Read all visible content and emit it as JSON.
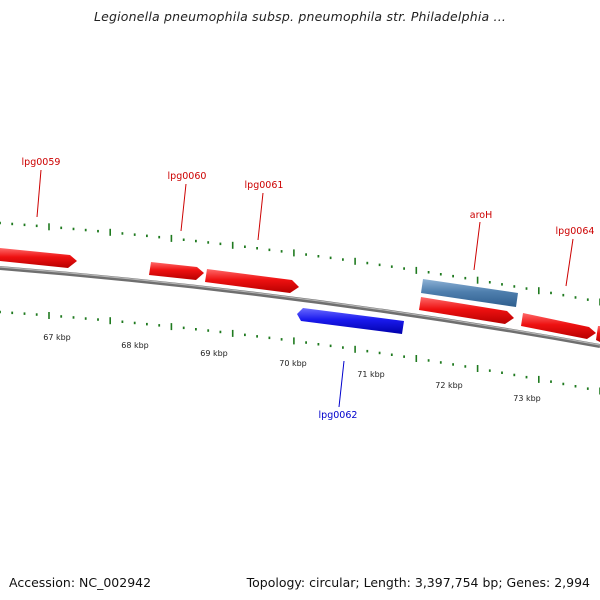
{
  "title": "Legionella pneumophila subsp. pneumophila str. Philadelphia ...",
  "footer": {
    "accession": "Accession: NC_002942",
    "summary": "Topology: circular; Length: 3,397,754 bp; Genes: 2,994"
  },
  "colors": {
    "forward_gene": "#ee1111",
    "reverse_gene": "#1a1aee",
    "rna_feature": "#4f7fae",
    "backbone": "#888888",
    "tick": "#1f7a1f",
    "forward_label": "#cc0000",
    "reverse_label": "#0000cc"
  },
  "ticks": [
    {
      "label": "67 kbp"
    },
    {
      "label": "68 kbp"
    },
    {
      "label": "69 kbp"
    },
    {
      "label": "70 kbp"
    },
    {
      "label": "71 kbp"
    },
    {
      "label": "72 kbp"
    },
    {
      "label": "73 kbp"
    }
  ],
  "genes": [
    {
      "name": "lpg0059",
      "strand": "forward"
    },
    {
      "name": "lpg0060",
      "strand": "forward"
    },
    {
      "name": "lpg0061",
      "strand": "forward"
    },
    {
      "name": "lpg0062",
      "strand": "reverse"
    },
    {
      "name": "aroH",
      "strand": "forward"
    },
    {
      "name": "lpg0064",
      "strand": "forward"
    }
  ]
}
